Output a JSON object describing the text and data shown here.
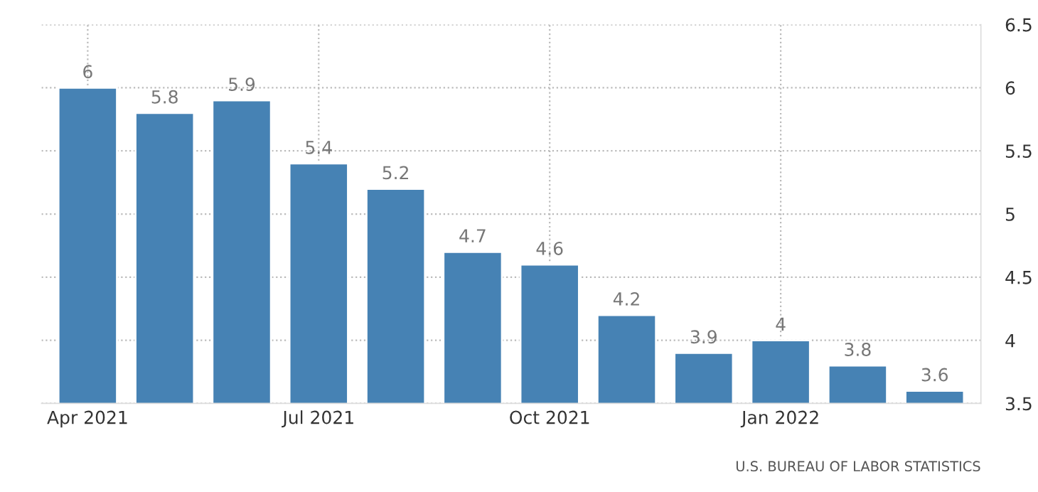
{
  "chart_data": {
    "type": "bar",
    "categories": [
      "Apr 2021",
      null,
      null,
      "Jul 2021",
      null,
      null,
      "Oct 2021",
      null,
      null,
      "Jan 2022",
      null,
      null
    ],
    "values": [
      6,
      5.8,
      5.9,
      5.4,
      5.2,
      4.7,
      4.6,
      4.2,
      3.9,
      4,
      3.8,
      3.6
    ],
    "color": "#4682b4",
    "ylim": [
      3.5,
      6.5
    ],
    "yticks": [
      3.5,
      4,
      4.5,
      5,
      5.5,
      6,
      6.5
    ],
    "grid": true,
    "data_labels": true,
    "annotations": [
      "U.S. BUREAU OF LABOR STATISTICS"
    ]
  }
}
